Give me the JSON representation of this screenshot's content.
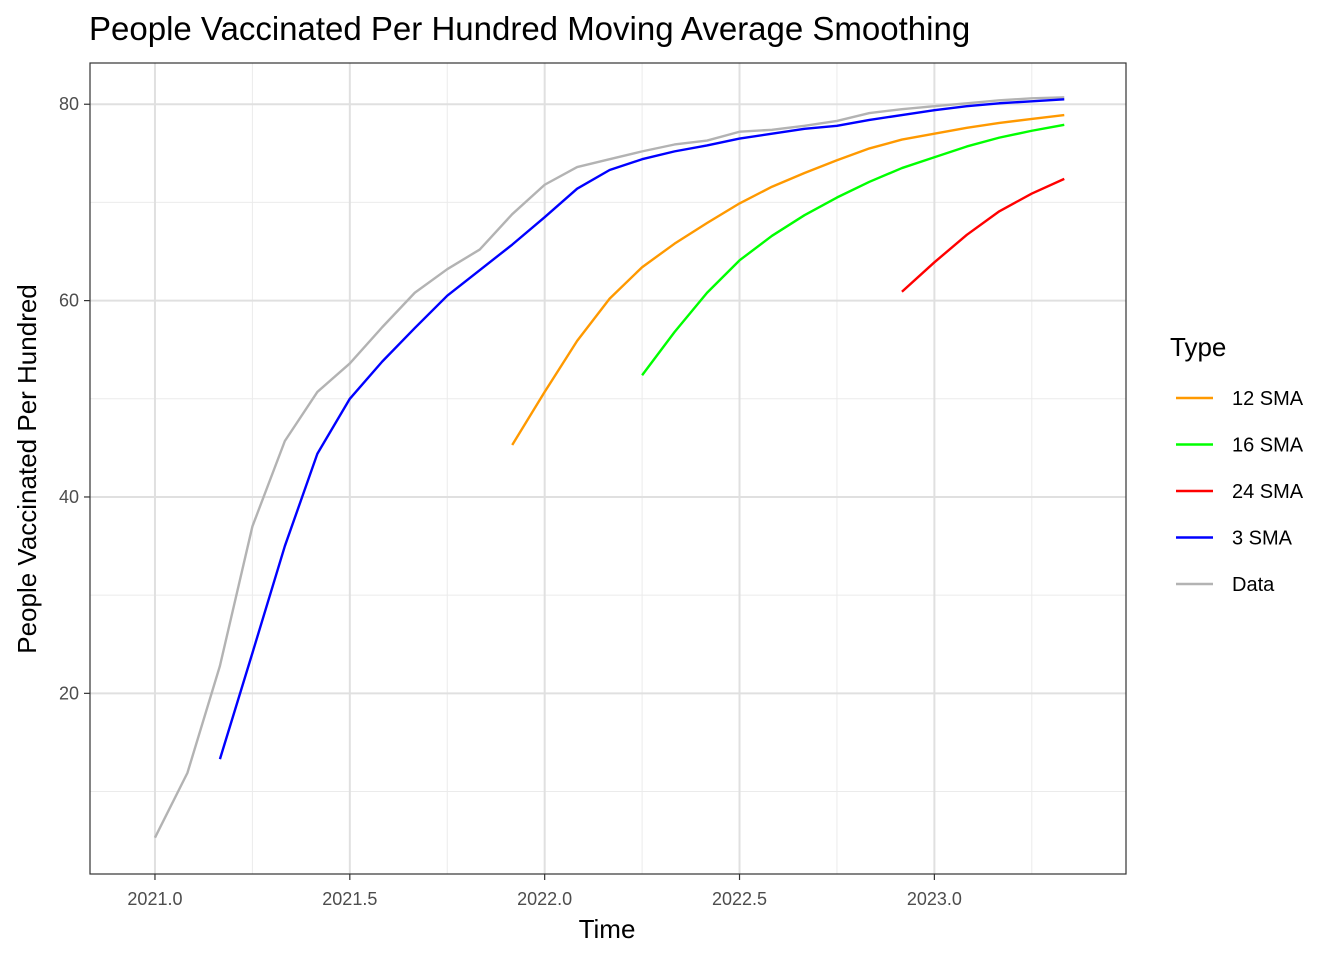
{
  "chart_data": {
    "type": "line",
    "title": "People Vaccinated Per Hundred Moving Average Smoothing",
    "xlabel": "Time",
    "ylabel": "People Vaccinated Per Hundred",
    "xlim": [
      2020.8333,
      2023.4917
    ],
    "ylim": [
      1.6,
      84.2
    ],
    "x_ticks": [
      2021.0,
      2021.5,
      2022.0,
      2022.5,
      2023.0
    ],
    "x_tick_labels": [
      "2021.0",
      "2021.5",
      "2022.0",
      "2022.5",
      "2023.0"
    ],
    "y_ticks": [
      20,
      40,
      60,
      80
    ],
    "y_tick_labels": [
      "20",
      "40",
      "60",
      "80"
    ],
    "x_minor_ticks": [
      2021.25,
      2021.75,
      2022.25,
      2022.75,
      2023.25
    ],
    "y_minor_ticks": [
      10,
      30,
      50,
      70
    ],
    "grid": true,
    "legend": {
      "title": "Type",
      "position": "right"
    },
    "series": [
      {
        "name": "12 SMA",
        "color": "#FF9900",
        "x": [
          2021.9167,
          2022.0,
          2022.0833,
          2022.1667,
          2022.25,
          2022.3333,
          2022.4167,
          2022.5,
          2022.5833,
          2022.6667,
          2022.75,
          2022.8333,
          2022.9167,
          2023.0,
          2023.0833,
          2023.1667,
          2023.25,
          2023.3333
        ],
        "values": [
          45.3,
          50.7,
          55.9,
          60.2,
          63.4,
          65.8,
          67.9,
          69.9,
          71.6,
          73.0,
          74.3,
          75.5,
          76.4,
          77.0,
          77.6,
          78.1,
          78.5,
          78.9
        ]
      },
      {
        "name": "16 SMA",
        "color": "#00FF00",
        "x": [
          2022.25,
          2022.3333,
          2022.4167,
          2022.5,
          2022.5833,
          2022.6667,
          2022.75,
          2022.8333,
          2022.9167,
          2023.0,
          2023.0833,
          2023.1667,
          2023.25,
          2023.3333
        ],
        "values": [
          52.4,
          56.8,
          60.8,
          64.1,
          66.6,
          68.7,
          70.5,
          72.1,
          73.5,
          74.6,
          75.7,
          76.6,
          77.3,
          77.9
        ]
      },
      {
        "name": "24 SMA",
        "color": "#FF0000",
        "x": [
          2022.9167,
          2023.0,
          2023.0833,
          2023.1667,
          2023.25,
          2023.3333
        ],
        "values": [
          60.9,
          63.9,
          66.7,
          69.1,
          70.9,
          72.4
        ]
      },
      {
        "name": "3 SMA",
        "color": "#0000FF",
        "x": [
          2021.1667,
          2021.25,
          2021.3333,
          2021.4167,
          2021.5,
          2021.5833,
          2021.6667,
          2021.75,
          2021.8333,
          2021.9167,
          2022.0,
          2022.0833,
          2022.1667,
          2022.25,
          2022.3333,
          2022.4167,
          2022.5,
          2022.5833,
          2022.6667,
          2022.75,
          2022.8333,
          2022.9167,
          2023.0,
          2023.0833,
          2023.1667,
          2023.25,
          2023.3333
        ],
        "values": [
          13.3,
          24.1,
          35.0,
          44.4,
          50.0,
          53.8,
          57.2,
          60.5,
          63.1,
          65.7,
          68.5,
          71.4,
          73.3,
          74.4,
          75.2,
          75.8,
          76.5,
          77.0,
          77.5,
          77.8,
          78.4,
          78.9,
          79.4,
          79.8,
          80.1,
          80.3,
          80.5
        ]
      },
      {
        "name": "Data",
        "color": "#B3B3B3",
        "x": [
          2021.0,
          2021.0833,
          2021.1667,
          2021.25,
          2021.3333,
          2021.4167,
          2021.5,
          2021.5833,
          2021.6667,
          2021.75,
          2021.8333,
          2021.9167,
          2022.0,
          2022.0833,
          2022.1667,
          2022.25,
          2022.3333,
          2022.4167,
          2022.5,
          2022.5833,
          2022.6667,
          2022.75,
          2022.8333,
          2022.9167,
          2023.0,
          2023.0833,
          2023.1667,
          2023.25,
          2023.3333
        ],
        "values": [
          5.3,
          11.9,
          22.8,
          37.0,
          45.7,
          50.7,
          53.6,
          57.3,
          60.8,
          63.2,
          65.2,
          68.8,
          71.8,
          73.6,
          74.4,
          75.2,
          75.9,
          76.3,
          77.2,
          77.4,
          77.8,
          78.3,
          79.1,
          79.5,
          79.8,
          80.1,
          80.4,
          80.6,
          80.7
        ]
      }
    ]
  }
}
